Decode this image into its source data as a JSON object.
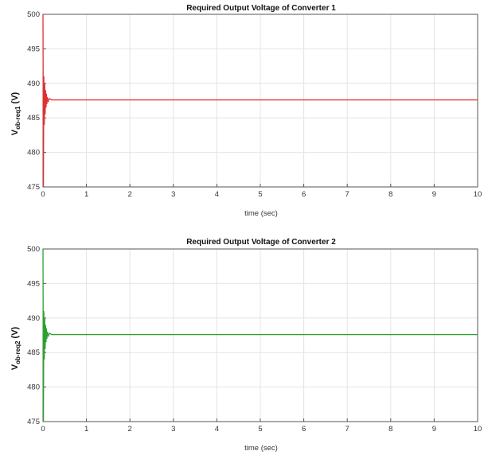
{
  "chart_data": [
    {
      "type": "line",
      "title": "Required Output Voltage of Converter 1",
      "xlabel": "time (sec)",
      "ylabel_main": "V",
      "ylabel_sub": "ob-req1",
      "ylabel_unit": " (V)",
      "xlim": [
        0,
        10
      ],
      "ylim": [
        475,
        500
      ],
      "xticks": [
        0,
        1,
        2,
        3,
        4,
        5,
        6,
        7,
        8,
        9,
        10
      ],
      "yticks": [
        475,
        480,
        485,
        490,
        495,
        500
      ],
      "grid": true,
      "series": [
        {
          "color": "#e03030",
          "x": [
            0,
            0.01,
            0.02,
            0.03,
            0.04,
            0.05,
            0.06,
            0.07,
            0.08,
            0.09,
            0.1,
            0.12,
            0.15,
            0.2,
            10
          ],
          "y": [
            500,
            475,
            491,
            484,
            490,
            485.5,
            489,
            486.5,
            488.5,
            487,
            488,
            487.4,
            487.8,
            487.6,
            487.6
          ]
        }
      ]
    },
    {
      "type": "line",
      "title": "Required Output Voltage of Converter 2",
      "xlabel": "time (sec)",
      "ylabel_main": "V",
      "ylabel_sub": "ob-req2",
      "ylabel_unit": " (V)",
      "xlim": [
        0,
        10
      ],
      "ylim": [
        475,
        500
      ],
      "xticks": [
        0,
        1,
        2,
        3,
        4,
        5,
        6,
        7,
        8,
        9,
        10
      ],
      "yticks": [
        475,
        480,
        485,
        490,
        495,
        500
      ],
      "grid": true,
      "series": [
        {
          "color": "#2ea02e",
          "x": [
            0,
            0.01,
            0.02,
            0.03,
            0.04,
            0.05,
            0.06,
            0.07,
            0.08,
            0.09,
            0.1,
            0.12,
            0.15,
            0.2,
            10
          ],
          "y": [
            500,
            475,
            491,
            484,
            490,
            485.5,
            489,
            486.5,
            488.5,
            487,
            488,
            487.4,
            487.8,
            487.6,
            487.6
          ]
        }
      ]
    }
  ]
}
